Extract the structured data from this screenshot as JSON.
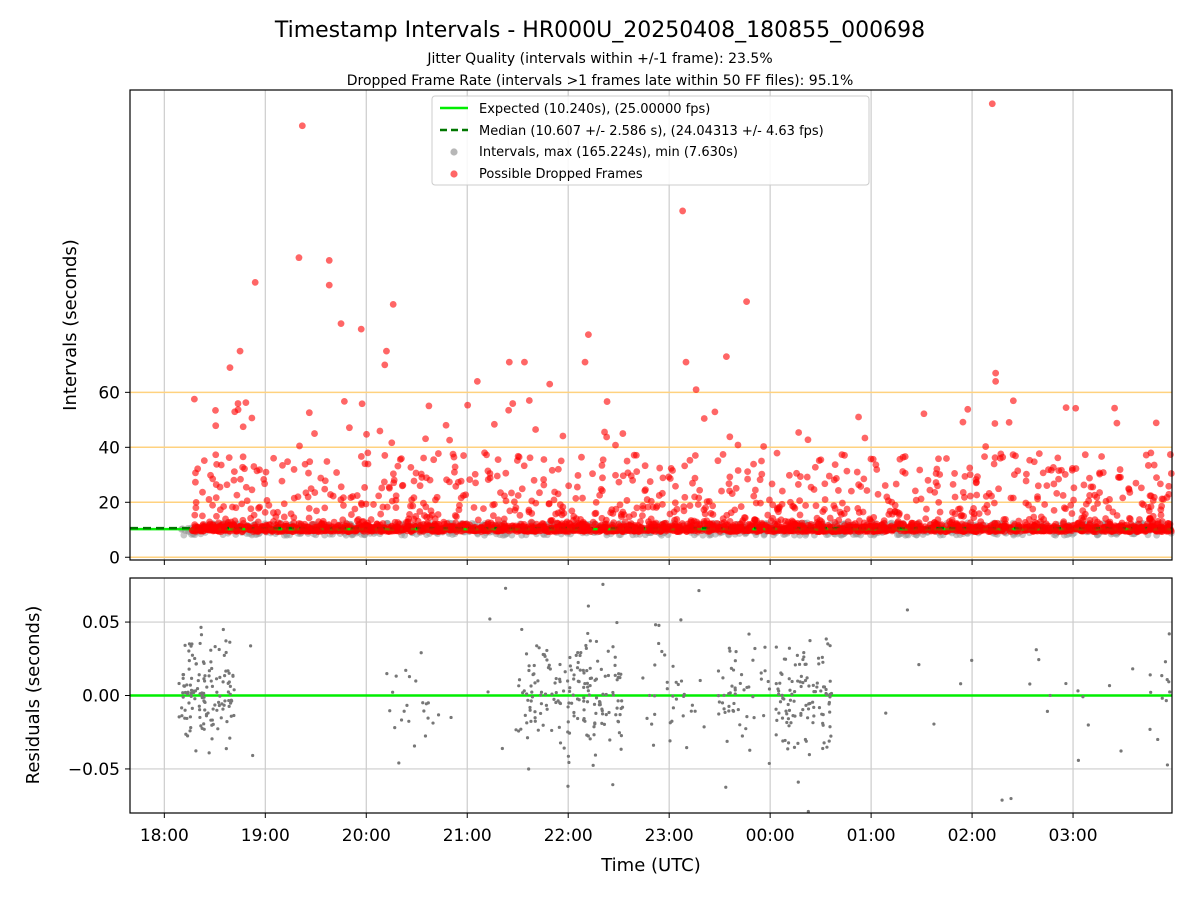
{
  "chart_data": [
    {
      "type": "scatter",
      "title": "Timestamp Intervals - HR000U_20250408_180855_000698",
      "subtitle_1": "Jitter Quality (intervals within +/-1 frame): 23.5%",
      "subtitle_2": "Dropped Frame Rate (intervals >1 frames late within 50 FF files): 95.1%",
      "xlabel": "",
      "ylabel": "Intervals (seconds)",
      "yticks": [
        "0",
        "20",
        "40",
        "60"
      ],
      "ylim": [
        -1,
        170
      ],
      "xlim_hours": [
        17.66,
        27.98
      ],
      "threshold_lines": [
        0,
        20,
        40,
        60
      ],
      "threshold_color": "#ffd27f",
      "legend_position": "top-center",
      "legend": [
        "Expected (10.240s), (25.00000 fps)",
        "Median (10.607 +/- 2.586 s), (24.04313 +/- 4.63 fps)",
        "Intervals, max (165.224s), min (7.630s)",
        "Possible Dropped Frames"
      ],
      "expected_interval": 10.24,
      "median_interval": 10.607,
      "max_interval": 165.224,
      "min_interval": 7.63,
      "colors": {
        "expected": "#00ee00",
        "median": "#007700",
        "intervals": "#999999",
        "dropped": "#ff0000"
      },
      "dropped_outliers": [
        {
          "x": "18:39",
          "y": 69
        },
        {
          "x": "18:45",
          "y": 75
        },
        {
          "x": "18:54",
          "y": 100
        },
        {
          "x": "19:38",
          "y": 99
        },
        {
          "x": "19:38",
          "y": 108
        },
        {
          "x": "19:45",
          "y": 85
        },
        {
          "x": "19:57",
          "y": 83
        },
        {
          "x": "20:12",
          "y": 75
        },
        {
          "x": "20:11",
          "y": 70
        },
        {
          "x": "20:16",
          "y": 92
        },
        {
          "x": "21:06",
          "y": 64
        },
        {
          "x": "21:25",
          "y": 71
        },
        {
          "x": "21:34",
          "y": 71
        },
        {
          "x": "21:49",
          "y": 63
        },
        {
          "x": "22:12",
          "y": 81
        },
        {
          "x": "22:10",
          "y": 71
        },
        {
          "x": "23:08",
          "y": 126
        },
        {
          "x": "23:10",
          "y": 71
        },
        {
          "x": "23:16",
          "y": 61
        },
        {
          "x": "23:34",
          "y": 73
        },
        {
          "x": "23:46",
          "y": 93
        },
        {
          "x": "02:12",
          "y": 165
        },
        {
          "x": "02:14",
          "y": 67
        },
        {
          "x": "02:14",
          "y": 64
        },
        {
          "x": "19:22",
          "y": 157
        },
        {
          "x": "19:20",
          "y": 109
        }
      ],
      "typical_band": [
        8,
        40
      ]
    },
    {
      "type": "scatter",
      "xlabel": "Time (UTC)",
      "ylabel": "Residuals (seconds)",
      "yticks": [
        "0.05",
        "0.00",
        "−0.05"
      ],
      "ylim": [
        -0.08,
        0.08
      ],
      "xticks": [
        "18:00",
        "19:00",
        "20:00",
        "21:00",
        "22:00",
        "23:00",
        "00:00",
        "01:00",
        "02:00",
        "03:00"
      ],
      "zero_line_color": "#00ee00",
      "point_color": "#777777",
      "clusters": [
        {
          "center": "18:25",
          "count": 130
        },
        {
          "center": "20:29",
          "count": 20
        },
        {
          "center": "21:47",
          "count": 70
        },
        {
          "center": "22:16",
          "count": 110
        },
        {
          "center": "23:00",
          "count": 30
        },
        {
          "center": "23:45",
          "count": 50
        },
        {
          "center": "00:20",
          "count": 110
        },
        {
          "center": "03:58",
          "count": 25
        }
      ]
    }
  ]
}
